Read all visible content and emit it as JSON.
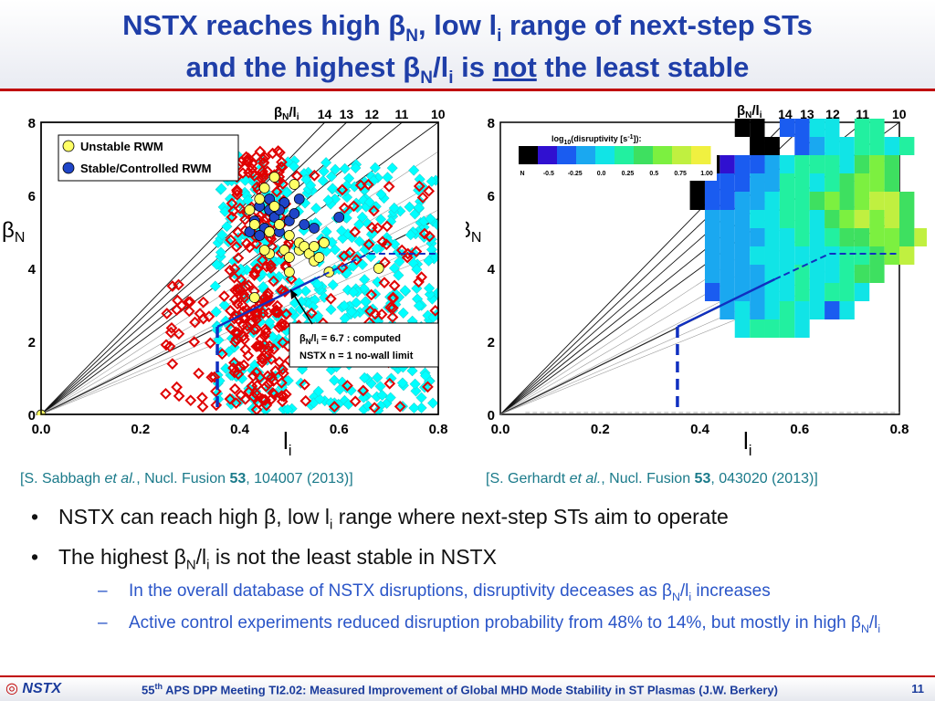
{
  "title": {
    "line1_a": "NSTX reaches high β",
    "line1_sub": "N",
    "line1_b": ", low l",
    "line1_sub2": "i",
    "line1_c": " range of next-step STs",
    "line2_a": "and the highest β",
    "line2_sub": "N",
    "line2_b": "/l",
    "line2_sub2": "i",
    "line2_c": " is ",
    "line2_not": "not",
    "line2_d": " the least stable"
  },
  "chart_data": [
    {
      "type": "scatter",
      "xlabel": "l",
      "xlabel_sub": "i",
      "ylabel": "β",
      "ylabel_sub": "N",
      "xlim": [
        0,
        0.8
      ],
      "ylim": [
        0,
        8
      ],
      "x_ticks": [
        "0.0",
        "0.2",
        "0.4",
        "0.6",
        "0.8"
      ],
      "y_ticks": [
        "0",
        "2",
        "4",
        "6",
        "8"
      ],
      "ratio_label": "β",
      "ratio_label_sub": "N",
      "ratio_label_b": "/l",
      "ratio_label_sub2": "i",
      "ratio_lines": [
        "14",
        "13",
        "12",
        "11",
        "10"
      ],
      "legend": [
        "Unstable RWM",
        "Stable/Controlled RWM"
      ],
      "annotation": {
        "line1_a": "β",
        "line1_sub": "N",
        "line1_b": "/l",
        "line1_sub2": "i",
        "line1_c": " = 6.7 : computed",
        "line2": "NSTX n = 1 no-wall limit"
      },
      "series": [
        {
          "name": "Unstable RWM",
          "color": "#ffff66",
          "x": [
            0.42,
            0.43,
            0.44,
            0.45,
            0.46,
            0.46,
            0.47,
            0.47,
            0.48,
            0.49,
            0.5,
            0.5,
            0.51,
            0.52,
            0.52,
            0.53,
            0.54,
            0.55,
            0.55,
            0.56,
            0.57,
            0.58,
            0.43,
            0.45,
            0.5,
            0.68
          ],
          "y": [
            5.6,
            5.2,
            5.9,
            6.2,
            5.0,
            4.4,
            5.7,
            6.5,
            5.2,
            4.5,
            4.3,
            4.9,
            6.3,
            4.5,
            4.7,
            4.6,
            4.4,
            4.2,
            4.6,
            4.3,
            4.7,
            3.9,
            3.2,
            4.5,
            3.9,
            4.0
          ]
        },
        {
          "name": "Stable/Controlled RWM",
          "color": "#1f45c8",
          "x": [
            0.42,
            0.43,
            0.44,
            0.45,
            0.46,
            0.47,
            0.48,
            0.49,
            0.5,
            0.51,
            0.52,
            0.53,
            0.55,
            0.6,
            0.44,
            0.46,
            0.48
          ],
          "y": [
            5.0,
            5.3,
            5.7,
            5.1,
            5.6,
            5.4,
            5.0,
            5.8,
            5.3,
            5.5,
            5.9,
            5.2,
            5.1,
            5.4,
            4.9,
            5.9,
            5.6
          ]
        }
      ]
    },
    {
      "type": "heatmap",
      "xlabel": "l",
      "xlabel_sub": "i",
      "ylabel": "β",
      "ylabel_sub": "N",
      "xlim": [
        0,
        0.8
      ],
      "ylim": [
        0,
        8
      ],
      "x_ticks": [
        "0.0",
        "0.2",
        "0.4",
        "0.6",
        "0.8"
      ],
      "y_ticks": [
        "0",
        "2",
        "4",
        "6",
        "8"
      ],
      "ratio_label": "β",
      "ratio_label_sub": "N",
      "ratio_label_b": "/l",
      "ratio_label_sub2": "i",
      "ratio_lines": [
        "14",
        "13",
        "12",
        "11",
        "10"
      ],
      "colorbar_title": "log",
      "colorbar_title_sub": "10",
      "colorbar_title_b": "(disruptivity [s",
      "colorbar_title_sup": "-1",
      "colorbar_title_c": "]):",
      "colorbar_ticks": [
        "N",
        "-0.5",
        "-0.25",
        "0.0",
        "0.25",
        "0.5",
        "0.75",
        "1.00"
      ],
      "colorbar_colors": [
        "#000000",
        "#3010d0",
        "#1a5cf0",
        "#1aa8f0",
        "#11e4e6",
        "#22f0a0",
        "#3ee060",
        "#7cf040",
        "#c0f040",
        "#f0f040"
      ],
      "heat_x0": 0.38,
      "heat_dx": 0.03,
      "heat_y0": 1.6,
      "heat_dy": 0.5,
      "grid": [
        "..............",
        "...KK.BBEE.FF..",
        "....KK.BCEEFFEF",
        ".KPSBCEFFFEGHG.",
        "KBBSCDFFEFGHHG.",
        "KBBDDEFFGHGHIIG",
        ".CDDEEFFEGHIHIG",
        ".CDCDEEFEFGGHHGI",
        ".DDCEEEEEEFFGHI",
        ".DDCDEEFEEFGG..",
        ".BCDDEEFEFFE...",
        "..DEDEFEEBE....",
        "...EFFFE.......",
        "..............."
      ]
    }
  ],
  "citations": [
    {
      "a": "[S. Sabbagh ",
      "b": "et al.",
      "c": ", Nucl. Fusion ",
      "vol": "53",
      "d": ", 104007 (2013)]"
    },
    {
      "a": "[S. Gerhardt ",
      "b": "et al.",
      "c": ", Nucl. Fusion ",
      "vol": "53",
      "d": ", 043020 (2013)]"
    }
  ],
  "bullets": [
    {
      "a": "NSTX can reach high β, low l",
      "sub": "i",
      "b": " range where next-step STs aim to operate"
    },
    {
      "a": "The highest β",
      "sub": "N",
      "b": "/l",
      "sub2": "i",
      "c": " is not the least stable in NSTX"
    }
  ],
  "subbullets": [
    {
      "a": "In the overall database of NSTX disruptions, disruptivity deceases as β",
      "sub": "N",
      "b": "/l",
      "sub2": "i",
      "c": " increases"
    },
    {
      "a": "Active control experiments reduced disruption probability from 48% to 14%, but mostly in high β",
      "sub": "N",
      "b": "/l",
      "sub2": "i",
      "c": ""
    }
  ],
  "footer": {
    "logo": "NSTX",
    "meeting_a": "55",
    "meeting_sup": "th",
    "meeting_b": " APS DPP Meeting TI2.02: Measured Improvement of Global MHD Mode Stability in ST Plasmas (J.W. Berkery)",
    "page": "11"
  },
  "colors": {
    "title": "#1f3ea8",
    "accent_red": "#c00000",
    "citation": "#1a7a8a",
    "subbullet": "#2a55c8"
  }
}
